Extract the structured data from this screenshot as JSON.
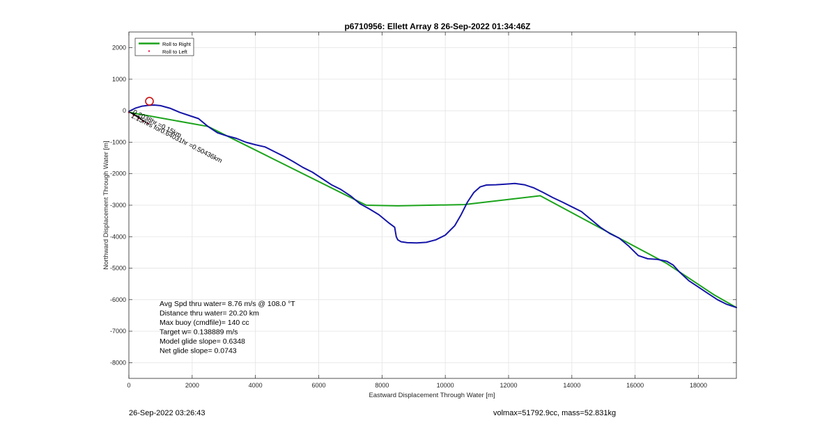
{
  "chart_data": {
    "type": "line",
    "title": "p6710956: Ellett Array 8 26-Sep-2022 01:34:46Z",
    "xlabel": "Eastward Displacement Through Water [m]",
    "ylabel": "Northward Displacement Through Water [m]",
    "xlim": [
      0,
      19200
    ],
    "ylim": [
      -8500,
      2500
    ],
    "xticks": [
      0,
      2000,
      4000,
      6000,
      8000,
      10000,
      12000,
      14000,
      16000,
      18000
    ],
    "yticks": [
      2000,
      1000,
      0,
      -1000,
      -2000,
      -3000,
      -4000,
      -5000,
      -6000,
      -7000,
      -8000
    ],
    "grid": true,
    "legend_position": "top-left",
    "series": [
      {
        "name": "Roll to Right",
        "color": "#1aa31a",
        "x": [
          0,
          2500,
          4500,
          7500,
          8500,
          10600,
          13000,
          15500,
          17000,
          18500,
          19200
        ],
        "y": [
          -50,
          -500,
          -1500,
          -3000,
          -3020,
          -2980,
          -2700,
          -4050,
          -4850,
          -5850,
          -6250
        ]
      },
      {
        "name": "Roll to Left",
        "color": "#e6194b",
        "marker": "dot",
        "x": [
          0,
          150,
          300,
          450,
          600
        ],
        "y": [
          -50,
          -150,
          -250,
          -330,
          -400
        ]
      },
      {
        "name": "",
        "color": "#1515a8",
        "x": [
          0,
          200,
          400,
          600,
          800,
          1000,
          1300,
          1600,
          1900,
          2200,
          2500,
          2800,
          3100,
          3400,
          3700,
          4000,
          4300,
          4600,
          4900,
          5200,
          5500,
          5800,
          6100,
          6400,
          6700,
          7000,
          7300,
          7600,
          7900,
          8200,
          8400,
          8450,
          8500,
          8600,
          8800,
          9100,
          9400,
          9700,
          10000,
          10300,
          10500,
          10700,
          10900,
          11100,
          11300,
          11600,
          11900,
          12200,
          12500,
          12800,
          13100,
          13400,
          13700,
          14000,
          14300,
          14600,
          14900,
          15200,
          15500,
          15800,
          16100,
          16400,
          16700,
          17000,
          17200,
          17400,
          17700,
          18000,
          18300,
          18600,
          18900,
          19200
        ],
        "y": [
          -20,
          80,
          140,
          170,
          180,
          160,
          80,
          -50,
          -150,
          -250,
          -500,
          -700,
          -800,
          -880,
          -1000,
          -1080,
          -1150,
          -1300,
          -1450,
          -1620,
          -1800,
          -1950,
          -2150,
          -2350,
          -2500,
          -2700,
          -2950,
          -3120,
          -3300,
          -3550,
          -3700,
          -4000,
          -4100,
          -4160,
          -4190,
          -4200,
          -4180,
          -4100,
          -3950,
          -3650,
          -3300,
          -2900,
          -2600,
          -2420,
          -2360,
          -2350,
          -2330,
          -2310,
          -2350,
          -2450,
          -2600,
          -2760,
          -2900,
          -3050,
          -3200,
          -3450,
          -3700,
          -3900,
          -4050,
          -4300,
          -4600,
          -4700,
          -4720,
          -4780,
          -4900,
          -5120,
          -5400,
          -5600,
          -5800,
          -6000,
          -6150,
          -6250
        ]
      }
    ],
    "annotations": {
      "circle": {
        "x": 650,
        "y": 300,
        "color": "#cc1111"
      },
      "rotated_text": "0.2038hr =0.15km 1.15m/s for0.6403 1hr =0.50436km",
      "rotated_text_a": "0.2038hr =0.15km",
      "rotated_text_b": "1.15m/s for0.64031hr =0.50436km",
      "info_lines": [
        "Avg Spd thru water=  8.76 m/s @ 108.0 °T",
        "Distance thru water= 20.20 km",
        "Max buoy (cmdfile)= 140 cc",
        "Target w= 0.138889 m/s",
        "Model glide slope= 0.6348",
        "Net glide slope= 0.0743"
      ]
    }
  },
  "footer": {
    "timestamp": "26-Sep-2022 03:26:43",
    "volmass": "volmax=51792.9cc, mass=52.831kg"
  }
}
